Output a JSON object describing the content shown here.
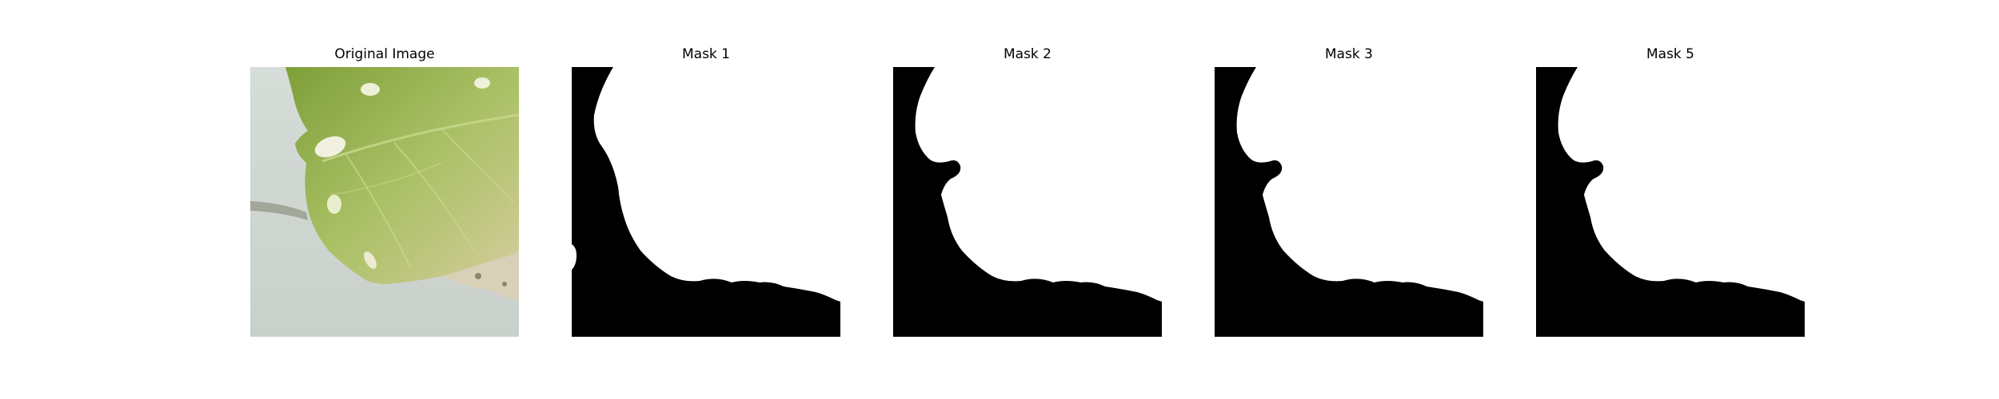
{
  "figure": {
    "panels": [
      {
        "id": "original",
        "title": "Original Image",
        "kind": "photo"
      },
      {
        "id": "mask1",
        "title": "Mask 1",
        "kind": "mask"
      },
      {
        "id": "mask2",
        "title": "Mask 2",
        "kind": "mask"
      },
      {
        "id": "mask3",
        "title": "Mask 3",
        "kind": "mask"
      },
      {
        "id": "mask5",
        "title": "Mask 5",
        "kind": "mask"
      }
    ]
  },
  "colors": {
    "mask_foreground": "#ffffff",
    "mask_background": "#000000",
    "background": "#ffffff"
  }
}
